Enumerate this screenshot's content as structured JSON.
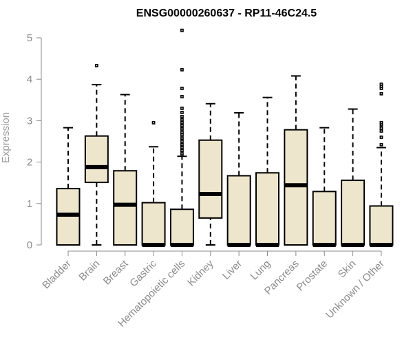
{
  "chart_data": {
    "type": "boxplot",
    "title": "ENSG00000260637 - RP11-46C24.5",
    "xlabel": "",
    "ylabel": "Expression",
    "ylim": [
      0,
      5
    ],
    "yticks": [
      "0",
      "1",
      "2",
      "3",
      "4",
      "5"
    ],
    "box_color": "#ede6cc",
    "categories": [
      "Bladder",
      "Brain",
      "Breast",
      "Gastric",
      "Hematopoietic cells",
      "Kidney",
      "Liver",
      "Lung",
      "Pancreas",
      "Prostate",
      "Skin",
      "Unknown / Other"
    ],
    "boxes": [
      {
        "min": 0,
        "q1": 0,
        "median": 0.73,
        "q3": 1.36,
        "max": 2.83,
        "outliers": []
      },
      {
        "min": 0,
        "q1": 1.51,
        "median": 1.88,
        "q3": 2.63,
        "max": 3.87,
        "outliers": [
          4.33
        ]
      },
      {
        "min": 0,
        "q1": 0,
        "median": 0.97,
        "q3": 1.79,
        "max": 3.63,
        "outliers": []
      },
      {
        "min": 0,
        "q1": 0,
        "median": 0,
        "q3": 1.02,
        "max": 2.37,
        "outliers": [
          2.95
        ]
      },
      {
        "min": 0,
        "q1": 0,
        "median": 0,
        "q3": 0.86,
        "max": 2.14,
        "outliers": [
          2.2,
          2.28,
          2.35,
          2.42,
          2.5,
          2.58,
          2.66,
          2.72,
          2.8,
          2.88,
          2.95,
          3.02,
          3.1,
          3.2,
          3.3,
          3.58,
          3.78,
          4.23,
          5.18
        ]
      },
      {
        "min": 0,
        "q1": 0.65,
        "median": 1.23,
        "q3": 2.53,
        "max": 3.41,
        "outliers": []
      },
      {
        "min": 0,
        "q1": 0,
        "median": 0,
        "q3": 1.67,
        "max": 3.19,
        "outliers": []
      },
      {
        "min": 0,
        "q1": 0,
        "median": 0,
        "q3": 1.74,
        "max": 3.56,
        "outliers": []
      },
      {
        "min": 0,
        "q1": 0,
        "median": 1.44,
        "q3": 2.78,
        "max": 4.08,
        "outliers": []
      },
      {
        "min": 0,
        "q1": 0,
        "median": 0,
        "q3": 1.29,
        "max": 2.83,
        "outliers": []
      },
      {
        "min": 0,
        "q1": 0,
        "median": 0,
        "q3": 1.56,
        "max": 3.28,
        "outliers": []
      },
      {
        "min": 0,
        "q1": 0,
        "median": 0,
        "q3": 0.94,
        "max": 2.35,
        "outliers": [
          2.42,
          2.6,
          2.75,
          2.82,
          2.9,
          2.95,
          3.65,
          3.78,
          3.83,
          3.88
        ]
      }
    ]
  }
}
